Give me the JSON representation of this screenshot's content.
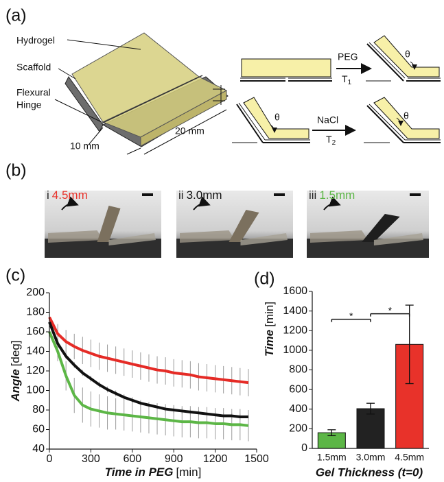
{
  "panels": {
    "a": "(a)",
    "b": "(b)",
    "c": "(c)",
    "d": "(d)"
  },
  "diagram": {
    "hydrogel": "Hydrogel",
    "scaffold": "Scaffold",
    "hinge": [
      "Flexural",
      "Hinge"
    ],
    "dim_short": "10 mm",
    "dim_long": "20 mm",
    "angle": "θ",
    "step1": {
      "agent": "PEG",
      "temp": "T",
      "temp_sub": "1"
    },
    "step2": {
      "agent": "NaCl",
      "temp": "T",
      "temp_sub": "2"
    }
  },
  "photos": [
    {
      "index": "i",
      "thickness": "4.5mm",
      "color": "#e8322a"
    },
    {
      "index": "ii",
      "thickness": "3.0mm",
      "color": "#111111"
    },
    {
      "index": "iii",
      "thickness": "1.5mm",
      "color": "#5cb646"
    }
  ],
  "chart_data": [
    {
      "type": "line",
      "y_label": "Angle",
      "y_unit": "[deg]",
      "x_label": "Time in PEG",
      "x_unit": "[min]",
      "x": [
        0,
        60,
        120,
        180,
        240,
        300,
        360,
        420,
        480,
        540,
        600,
        660,
        720,
        780,
        840,
        900,
        960,
        1020,
        1080,
        1140,
        1200,
        1260,
        1320,
        1380,
        1440
      ],
      "series": [
        {
          "color": "#e52b26",
          "values": [
            175,
            158,
            150,
            145,
            141,
            138,
            135,
            133,
            131,
            129,
            127,
            125,
            123,
            121,
            120,
            118,
            117,
            116,
            114,
            113,
            112,
            111,
            110,
            109,
            108
          ],
          "errors": [
            3,
            10,
            12,
            13,
            14,
            14,
            14,
            14,
            14,
            14,
            14,
            14,
            14,
            14,
            14,
            14,
            14,
            14,
            14,
            14,
            14,
            14,
            14,
            14,
            14
          ]
        },
        {
          "color": "#111111",
          "values": [
            170,
            148,
            135,
            126,
            118,
            112,
            106,
            101,
            97,
            93,
            90,
            87,
            85,
            83,
            81,
            80,
            79,
            78,
            77,
            76,
            75,
            74,
            74,
            73,
            73
          ],
          "errors": [
            3,
            3,
            3,
            3,
            3,
            3,
            3,
            3,
            3,
            3,
            3,
            3,
            3,
            3,
            3,
            3,
            3,
            3,
            3,
            3,
            3,
            3,
            3,
            3,
            3
          ]
        },
        {
          "color": "#5cb646",
          "values": [
            160,
            140,
            115,
            95,
            85,
            81,
            79,
            77,
            76,
            75,
            74,
            73,
            72,
            71,
            70,
            69,
            68,
            68,
            67,
            67,
            66,
            66,
            65,
            65,
            64
          ],
          "errors": [
            3,
            10,
            15,
            18,
            18,
            18,
            17,
            17,
            16,
            16,
            16,
            16,
            16,
            16,
            16,
            16,
            16,
            16,
            16,
            16,
            16,
            16,
            16,
            16,
            16
          ]
        }
      ],
      "xlim": [
        0,
        1500
      ],
      "xticks": [
        0,
        300,
        600,
        900,
        1200,
        1500
      ],
      "ylim": [
        40,
        200
      ],
      "yticks": [
        40,
        60,
        80,
        100,
        120,
        140,
        160,
        180,
        200
      ],
      "error_color": "#9a9a9a"
    },
    {
      "type": "bar",
      "y_label": "Time",
      "y_unit": "[min]",
      "x_label": "Gel Thickness (t=0)",
      "categories": [
        "1.5mm",
        "3.0mm",
        "4.5mm"
      ],
      "values": [
        160,
        405,
        1060
      ],
      "errors": [
        30,
        55,
        400
      ],
      "colors": [
        "#5cb646",
        "#222222",
        "#e8322a"
      ],
      "ylim": [
        0,
        1600
      ],
      "yticks": [
        0,
        200,
        400,
        600,
        800,
        1000,
        1200,
        1400,
        1600
      ],
      "annotations": [
        "*",
        "*"
      ]
    }
  ]
}
